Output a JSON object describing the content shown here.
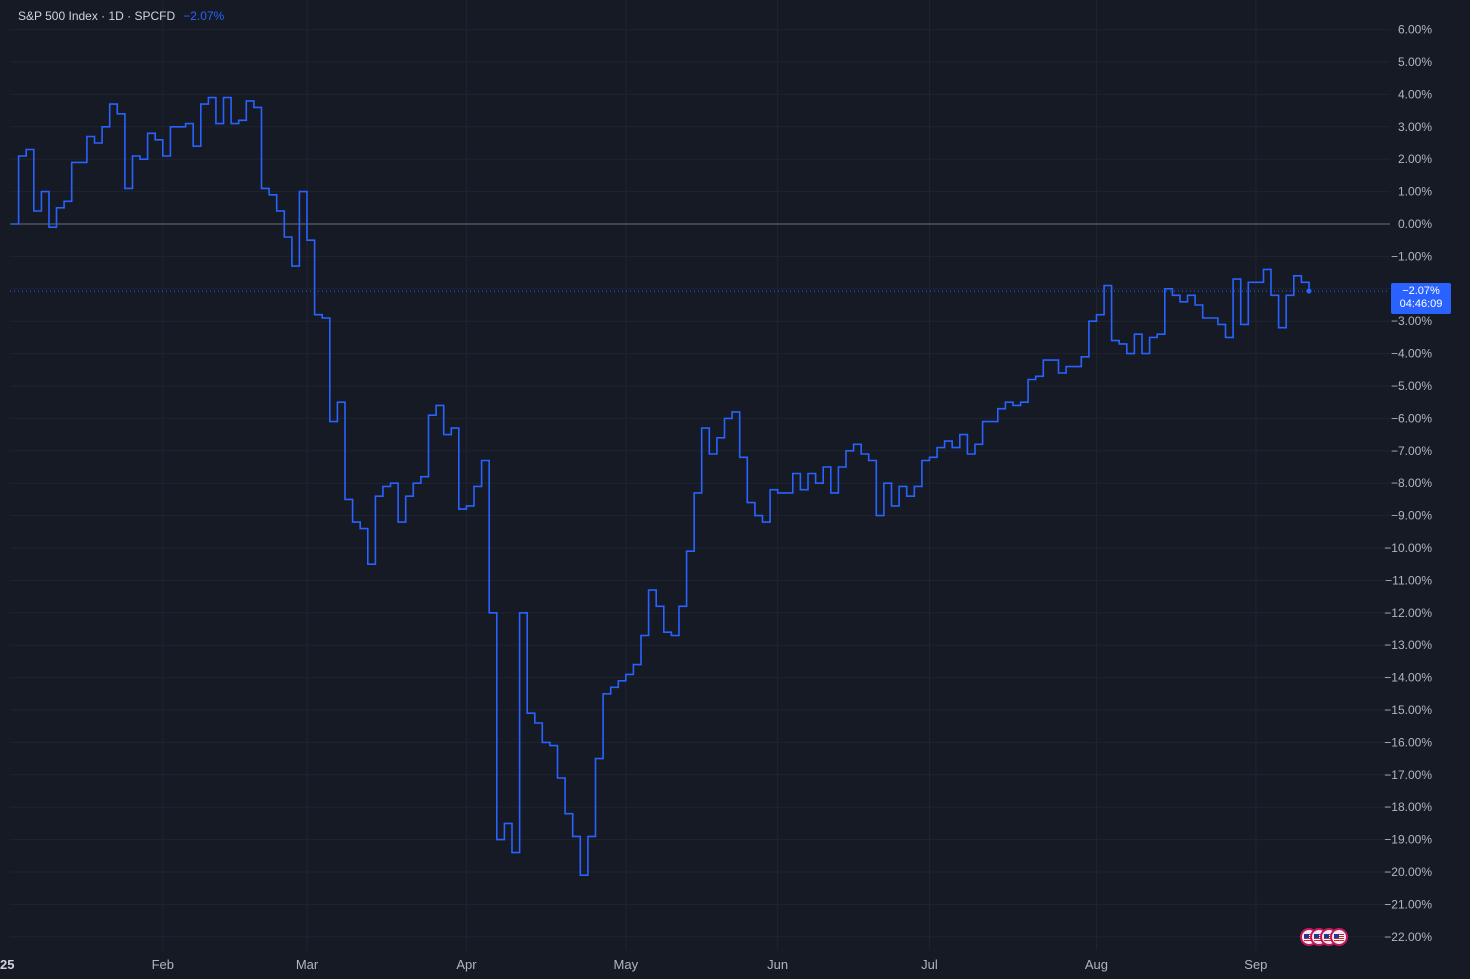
{
  "legend": {
    "symbol": "S&P 500 Index · 1D · SPCFD",
    "change": "−2.07%"
  },
  "price_tag": {
    "value": "−2.07%",
    "countdown": "04:46:09"
  },
  "x_axis_first_label": "25",
  "colors": {
    "background": "#161a25",
    "line": "#2962ff",
    "grid": "#1f2430",
    "zero_line": "#6b6f7a",
    "text": "#d1d4dc"
  },
  "events_icon": "us-flag-economic-events-icon",
  "chart_data": {
    "type": "line",
    "step": true,
    "title": "",
    "xlabel": "",
    "ylabel": "",
    "ylim": [
      -22.5,
      6.6
    ],
    "yticks": [
      6,
      5,
      4,
      3,
      2,
      1,
      0,
      -1,
      -2,
      -3,
      -4,
      -5,
      -6,
      -7,
      -8,
      -9,
      -10,
      -11,
      -12,
      -13,
      -14,
      -15,
      -16,
      -17,
      -18,
      -19,
      -20,
      -21,
      -22
    ],
    "ytick_labels": [
      "6.00%",
      "5.00%",
      "4.00%",
      "3.00%",
      "2.00%",
      "1.00%",
      "0.00%",
      "−1.00%",
      "−2.00%",
      "−3.00%",
      "−4.00%",
      "−5.00%",
      "−6.00%",
      "−7.00%",
      "−8.00%",
      "−9.00%",
      "−10.00%",
      "−11.00%",
      "−12.00%",
      "−13.00%",
      "−14.00%",
      "−15.00%",
      "−16.00%",
      "−17.00%",
      "−18.00%",
      "−19.00%",
      "−20.00%",
      "−21.00%",
      "−22.00%"
    ],
    "xticks": [
      "Feb",
      "Mar",
      "Apr",
      "May",
      "Jun",
      "Jul",
      "Aug",
      "Sep"
    ],
    "xtick_index": [
      20,
      39,
      60,
      81,
      101,
      121,
      143,
      164
    ],
    "grid": true,
    "series": [
      {
        "values": [
          0,
          2.1,
          2.3,
          0.4,
          1.0,
          -0.1,
          0.5,
          0.7,
          1.9,
          1.9,
          2.7,
          2.5,
          3.0,
          3.7,
          3.4,
          1.1,
          2.1,
          2.0,
          2.8,
          2.6,
          2.1,
          3.0,
          3.0,
          3.1,
          2.4,
          3.7,
          3.9,
          3.1,
          3.9,
          3.1,
          3.2,
          3.8,
          3.6,
          1.1,
          0.9,
          0.4,
          -0.4,
          -1.3,
          1.0,
          -0.5,
          -2.8,
          -2.9,
          -6.1,
          -5.5,
          -8.5,
          -9.2,
          -9.4,
          -10.5,
          -8.4,
          -8.1,
          -8.0,
          -9.2,
          -8.4,
          -8.0,
          -7.8,
          -5.9,
          -5.6,
          -6.5,
          -6.3,
          -8.8,
          -8.7,
          -8.1,
          -7.3,
          -12.0,
          -19.0,
          -18.5,
          -19.4,
          -12.0,
          -15.1,
          -15.4,
          -16.0,
          -16.1,
          -17.1,
          -18.2,
          -18.9,
          -20.1,
          -18.9,
          -16.5,
          -14.5,
          -14.3,
          -14.1,
          -13.9,
          -13.6,
          -12.7,
          -11.3,
          -11.8,
          -12.6,
          -12.7,
          -11.8,
          -10.1,
          -8.3,
          -6.3,
          -7.1,
          -6.6,
          -6.0,
          -5.8,
          -7.2,
          -8.6,
          -9.0,
          -9.2,
          -8.2,
          -8.3,
          -8.3,
          -7.7,
          -8.2,
          -7.7,
          -8.0,
          -7.5,
          -8.3,
          -7.5,
          -7.0,
          -6.8,
          -7.1,
          -7.3,
          -9.0,
          -8.0,
          -8.7,
          -8.1,
          -8.4,
          -8.1,
          -7.3,
          -7.2,
          -6.9,
          -6.7,
          -6.9,
          -6.5,
          -7.1,
          -6.8,
          -6.1,
          -6.1,
          -5.7,
          -5.5,
          -5.6,
          -5.5,
          -4.8,
          -4.7,
          -4.2,
          -4.2,
          -4.6,
          -4.4,
          -4.4,
          -4.1,
          -3.0,
          -2.8,
          -1.9,
          -3.6,
          -3.7,
          -4.0,
          -3.4,
          -4.0,
          -3.5,
          -3.4,
          -2.0,
          -2.2,
          -2.4,
          -2.2,
          -2.5,
          -2.9,
          -2.9,
          -3.1,
          -3.5,
          -1.7,
          -3.1,
          -1.8,
          -1.8,
          -1.4,
          -2.2,
          -3.2,
          -2.2,
          -1.6,
          -1.8,
          -2.07
        ]
      }
    ]
  }
}
